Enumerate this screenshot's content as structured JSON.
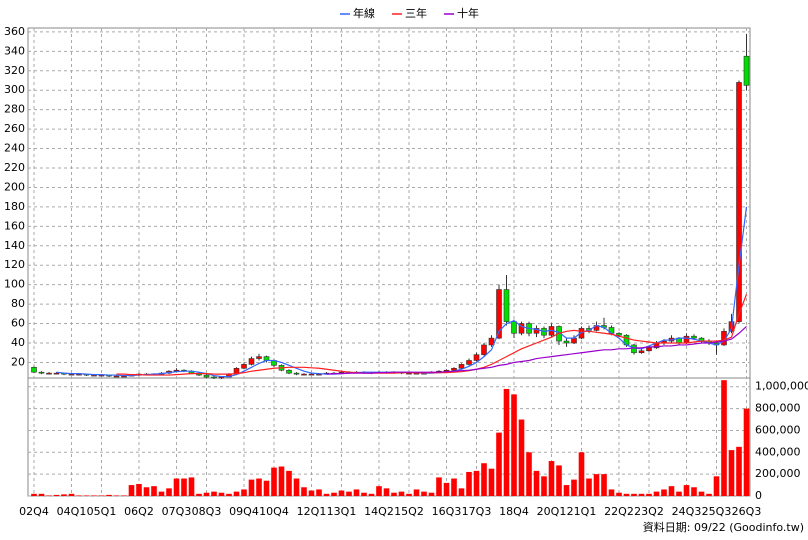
{
  "chart_data": [
    {
      "type": "candlestick",
      "categories": [
        "02Q4",
        null,
        null,
        null,
        null,
        "04Q1",
        null,
        null,
        null,
        "05Q1",
        null,
        null,
        null,
        null,
        "06Q2",
        null,
        null,
        null,
        null,
        "07Q3",
        null,
        null,
        null,
        "08Q3",
        null,
        null,
        null,
        null,
        "09Q4",
        null,
        null,
        null,
        "10Q4",
        null,
        null,
        null,
        null,
        "12Q1",
        null,
        null,
        null,
        "13Q1",
        null,
        null,
        null,
        null,
        "14Q2",
        null,
        null,
        null,
        "15Q2",
        null,
        null,
        null,
        null,
        "16Q3",
        null,
        null,
        null,
        "17Q3",
        null,
        null,
        null,
        null,
        "18Q4",
        null,
        null,
        null,
        null,
        "20Q1",
        null,
        null,
        null,
        "21Q1",
        null,
        null,
        null,
        null,
        "22Q2",
        null,
        null,
        null,
        "23Q2",
        null,
        null,
        null,
        null,
        "24Q3",
        null,
        null,
        null,
        "25Q3",
        null,
        null,
        null,
        "26Q3"
      ],
      "open": [
        15,
        10,
        9,
        9,
        9,
        8,
        8,
        8,
        7,
        7,
        7,
        6,
        6,
        6,
        7,
        8,
        8,
        8,
        9,
        11,
        12,
        11,
        9,
        7,
        5,
        4,
        5,
        8,
        14,
        18,
        24,
        26,
        22,
        17,
        12,
        9,
        8,
        8,
        8,
        8,
        9,
        9,
        10,
        10,
        10,
        10,
        9,
        10,
        10,
        10,
        9,
        9,
        9,
        9,
        10,
        11,
        12,
        14,
        18,
        22,
        28,
        38,
        45,
        95,
        62,
        50,
        60,
        50,
        55,
        48,
        57,
        42,
        40,
        45,
        55,
        53,
        58,
        56,
        50,
        48,
        38,
        30,
        32,
        35,
        40,
        42,
        45,
        40,
        47,
        45,
        42,
        40,
        38,
        52,
        62,
        335
      ],
      "high": [
        16,
        11,
        10,
        10,
        9,
        9,
        9,
        8,
        8,
        8,
        7,
        7,
        7,
        8,
        9,
        9,
        9,
        10,
        12,
        14,
        13,
        12,
        10,
        8,
        6,
        6,
        9,
        15,
        20,
        26,
        29,
        27,
        23,
        18,
        13,
        10,
        9,
        9,
        9,
        10,
        10,
        11,
        11,
        11,
        11,
        10,
        11,
        11,
        11,
        10,
        10,
        10,
        10,
        11,
        12,
        13,
        15,
        19,
        24,
        30,
        40,
        48,
        100,
        110,
        64,
        62,
        62,
        58,
        57,
        60,
        58,
        45,
        48,
        57,
        58,
        62,
        66,
        58,
        51,
        49,
        39,
        34,
        37,
        42,
        44,
        48,
        46,
        50,
        49,
        46,
        44,
        41,
        55,
        70,
        310,
        358
      ],
      "low": [
        9,
        8,
        8,
        8,
        7,
        7,
        7,
        6,
        6,
        6,
        5,
        5,
        5,
        6,
        6,
        7,
        7,
        7,
        8,
        10,
        10,
        8,
        6,
        4,
        3,
        3,
        5,
        7,
        13,
        17,
        22,
        20,
        15,
        11,
        8,
        7,
        7,
        7,
        7,
        8,
        8,
        9,
        9,
        9,
        9,
        8,
        9,
        9,
        9,
        8,
        8,
        8,
        8,
        9,
        10,
        10,
        11,
        13,
        17,
        21,
        27,
        36,
        44,
        58,
        45,
        48,
        47,
        46,
        45,
        46,
        38,
        36,
        39,
        44,
        50,
        52,
        54,
        48,
        46,
        36,
        28,
        29,
        31,
        34,
        38,
        40,
        38,
        39,
        43,
        40,
        38,
        28,
        37,
        50,
        60,
        300
      ],
      "close": [
        10,
        9,
        9,
        9,
        8,
        8,
        8,
        7,
        7,
        7,
        6,
        6,
        6,
        7,
        8,
        8,
        8,
        9,
        11,
        12,
        11,
        9,
        7,
        5,
        4,
        5,
        8,
        14,
        18,
        24,
        26,
        22,
        17,
        12,
        9,
        8,
        8,
        8,
        8,
        9,
        9,
        10,
        10,
        10,
        10,
        9,
        10,
        10,
        10,
        9,
        9,
        9,
        9,
        10,
        11,
        12,
        14,
        18,
        22,
        28,
        38,
        45,
        95,
        62,
        50,
        60,
        50,
        55,
        48,
        57,
        42,
        40,
        45,
        55,
        53,
        58,
        56,
        50,
        48,
        38,
        30,
        32,
        35,
        40,
        42,
        45,
        40,
        47,
        45,
        42,
        40,
        38,
        52,
        62,
        308,
        305
      ],
      "up_color": "#ff0000",
      "down_color": "#00e000",
      "series": [
        {
          "name": "年線",
          "color": "#3366ff",
          "values": [
            null,
            null,
            null,
            10,
            9,
            8.5,
            8.5,
            8,
            7.5,
            7.5,
            7,
            7,
            6.5,
            6.5,
            7,
            7.5,
            8,
            8.5,
            9.5,
            10.5,
            11,
            11,
            10,
            8.5,
            6.5,
            5.5,
            5.5,
            7.5,
            11,
            15,
            19,
            22,
            22,
            20,
            17,
            14,
            11,
            9,
            8.5,
            8,
            8,
            8.5,
            9,
            9.5,
            10,
            10,
            10,
            10,
            10,
            10,
            10,
            9.5,
            9,
            9,
            9.5,
            10,
            11,
            13,
            16,
            20,
            26,
            33,
            52,
            60,
            63,
            57,
            55,
            54,
            52,
            53,
            51,
            45,
            45,
            51,
            53,
            58,
            56,
            50,
            45,
            38,
            35,
            34,
            37,
            40,
            43,
            43,
            45,
            45,
            44,
            42,
            40,
            38,
            42,
            55,
            120,
            180
          ]
        },
        {
          "name": "三年",
          "color": "#ff2020",
          "values": [
            null,
            null,
            null,
            null,
            null,
            null,
            null,
            null,
            null,
            null,
            null,
            8,
            8,
            7.5,
            7.5,
            7,
            7,
            7,
            7,
            7.5,
            8,
            8.5,
            8.5,
            8.5,
            8,
            8,
            8,
            8.5,
            9.5,
            11,
            12,
            13,
            14,
            14.5,
            15,
            15,
            15,
            14.5,
            14,
            13,
            12,
            11,
            10,
            9.5,
            9,
            9,
            9,
            9,
            9,
            9.5,
            9.5,
            9.5,
            9.5,
            9.5,
            9.5,
            9.5,
            10,
            10.5,
            11.5,
            13,
            15,
            18,
            22,
            26,
            30,
            34,
            37,
            40,
            43,
            46,
            50,
            52,
            53,
            52,
            52,
            51,
            50,
            49,
            47,
            45,
            43,
            42,
            41,
            40,
            40,
            40,
            40,
            40,
            41,
            42,
            42,
            42,
            43,
            46,
            70,
            90
          ]
        },
        {
          "name": "十年",
          "color": "#9900cc",
          "values": [
            null,
            null,
            null,
            null,
            null,
            null,
            null,
            null,
            null,
            null,
            null,
            null,
            null,
            null,
            null,
            null,
            null,
            null,
            null,
            null,
            null,
            null,
            null,
            null,
            null,
            null,
            null,
            null,
            null,
            null,
            null,
            null,
            null,
            null,
            null,
            null,
            null,
            null,
            null,
            8,
            8.5,
            8.5,
            9,
            9,
            9,
            9,
            9.5,
            9.5,
            10,
            10,
            10,
            10,
            10,
            10,
            10,
            10.5,
            11,
            11.5,
            12,
            13,
            14,
            15,
            17,
            18,
            20,
            21,
            22,
            24,
            25,
            26,
            27,
            28,
            29,
            30,
            31,
            32,
            33,
            33,
            34,
            34,
            35,
            35,
            36,
            36,
            37,
            37,
            38,
            38,
            39,
            40,
            40,
            41,
            42,
            44,
            50,
            57
          ]
        }
      ],
      "ylim": [
        4,
        364
      ],
      "yticks": [
        20,
        40,
        60,
        80,
        100,
        120,
        140,
        160,
        180,
        200,
        220,
        240,
        260,
        280,
        300,
        320,
        340,
        360
      ],
      "grid": true
    },
    {
      "type": "bar",
      "color": "#ff0000",
      "values": [
        20000,
        20000,
        5000,
        10000,
        15000,
        20000,
        5000,
        5000,
        5000,
        5000,
        10000,
        5000,
        5000,
        100000,
        110000,
        80000,
        90000,
        40000,
        70000,
        160000,
        160000,
        170000,
        20000,
        30000,
        40000,
        30000,
        20000,
        40000,
        60000,
        150000,
        160000,
        140000,
        260000,
        270000,
        230000,
        160000,
        80000,
        50000,
        60000,
        20000,
        30000,
        50000,
        40000,
        60000,
        30000,
        20000,
        90000,
        70000,
        30000,
        40000,
        20000,
        60000,
        40000,
        30000,
        170000,
        120000,
        160000,
        70000,
        220000,
        230000,
        300000,
        250000,
        580000,
        980000,
        930000,
        700000,
        400000,
        230000,
        180000,
        320000,
        280000,
        100000,
        150000,
        400000,
        160000,
        200000,
        200000,
        60000,
        30000,
        20000,
        20000,
        20000,
        20000,
        40000,
        60000,
        90000,
        40000,
        100000,
        80000,
        40000,
        20000,
        180000,
        1060000,
        420000,
        450000,
        800000
      ],
      "ylim": [
        0,
        1080000
      ],
      "yticks": [
        0,
        {
          "value": 200000,
          "label": "200,000"
        },
        {
          "value": 400000,
          "label": "400,000"
        },
        {
          "value": 600000,
          "label": "600,000"
        },
        {
          "value": 800000,
          "label": "800,000"
        },
        {
          "value": 1000000,
          "label": "1,000,000"
        }
      ],
      "grid": true
    }
  ],
  "footer": "資料日期: 09/22 (Goodinfo.tw)"
}
